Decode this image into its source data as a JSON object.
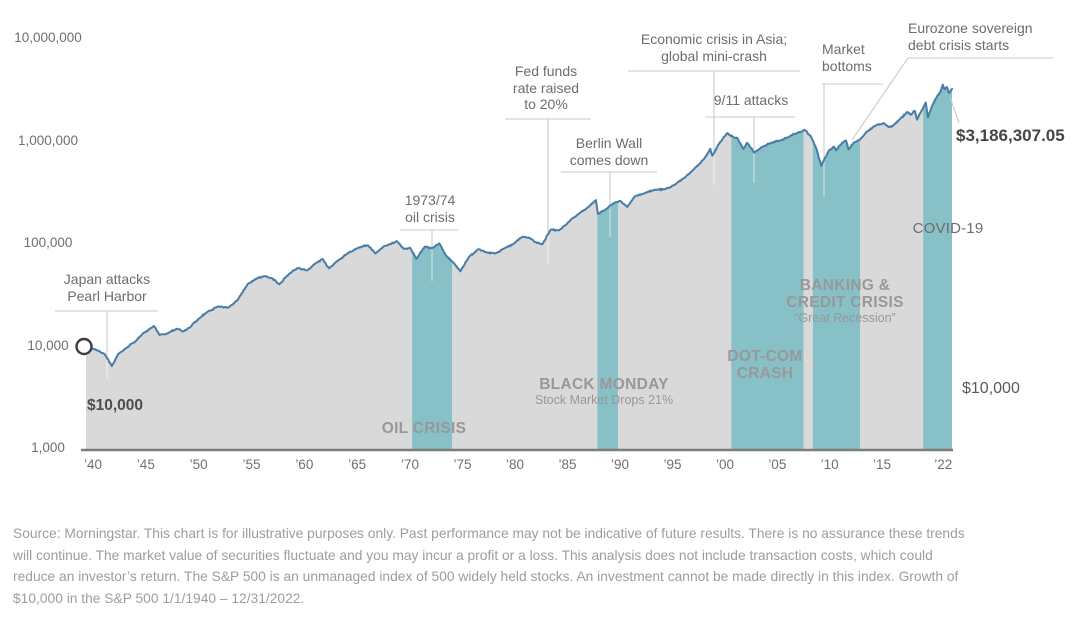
{
  "chart_data": {
    "type": "area",
    "title": "",
    "description": "Growth of $10,000 in the S&P 500 1/1/1940 - 12/31/2022",
    "y_axis": {
      "scale": "log",
      "range": [
        1000,
        10000000
      ],
      "ticks": [
        {
          "label": "10,000,000",
          "value": 10000000
        },
        {
          "label": "1,000,000",
          "value": 1000000
        },
        {
          "label": "100,000",
          "value": 100000
        },
        {
          "label": "10,000",
          "value": 10000
        },
        {
          "label": "1,000",
          "value": 1000
        }
      ]
    },
    "x_axis": {
      "range_years": [
        1940,
        2023
      ],
      "ticks": [
        {
          "label": "’40",
          "year": 1940
        },
        {
          "label": "’45",
          "year": 1945
        },
        {
          "label": "’50",
          "year": 1950
        },
        {
          "label": "’55",
          "year": 1955
        },
        {
          "label": "’60",
          "year": 1960
        },
        {
          "label": "’65",
          "year": 1965
        },
        {
          "label": "’70",
          "year": 1970
        },
        {
          "label": "’75",
          "year": 1975
        },
        {
          "label": "’80",
          "year": 1980
        },
        {
          "label": "’85",
          "year": 1985
        },
        {
          "label": "’90",
          "year": 1990
        },
        {
          "label": "’95",
          "year": 1995
        },
        {
          "label": "’00",
          "year": 2000
        },
        {
          "label": "’05",
          "year": 2005
        },
        {
          "label": "’10",
          "year": 2010
        },
        {
          "label": "’15",
          "year": 2015
        },
        {
          "label": "’22",
          "year": 2022
        }
      ]
    },
    "series": {
      "name": "Growth of $10,000 in the S&P 500",
      "start_value": 10000,
      "end_value": 3186307.05,
      "points": [
        [
          1940.0,
          10000
        ],
        [
          1940.6,
          9300
        ],
        [
          1941.1,
          8900
        ],
        [
          1941.7,
          8300
        ],
        [
          1942.4,
          6300
        ],
        [
          1943.0,
          8300
        ],
        [
          1943.8,
          9600
        ],
        [
          1944.5,
          10800
        ],
        [
          1945.3,
          13200
        ],
        [
          1946.3,
          15500
        ],
        [
          1946.8,
          12700
        ],
        [
          1947.5,
          13000
        ],
        [
          1948.4,
          14600
        ],
        [
          1949.0,
          13700
        ],
        [
          1949.6,
          15000
        ],
        [
          1950.5,
          18500
        ],
        [
          1951.3,
          21500
        ],
        [
          1952.2,
          24000
        ],
        [
          1953.2,
          23500
        ],
        [
          1954.0,
          27500
        ],
        [
          1955.0,
          40000
        ],
        [
          1955.8,
          45000
        ],
        [
          1956.5,
          47500
        ],
        [
          1957.2,
          45500
        ],
        [
          1957.9,
          39500
        ],
        [
          1958.8,
          50000
        ],
        [
          1959.6,
          57000
        ],
        [
          1960.5,
          54000
        ],
        [
          1961.3,
          64000
        ],
        [
          1961.9,
          70000
        ],
        [
          1962.5,
          56500
        ],
        [
          1963.3,
          67000
        ],
        [
          1964.2,
          79000
        ],
        [
          1965.2,
          90000
        ],
        [
          1966.1,
          95000
        ],
        [
          1966.8,
          79000
        ],
        [
          1967.6,
          93000
        ],
        [
          1968.8,
          104000
        ],
        [
          1969.4,
          88000
        ],
        [
          1970.0,
          90000
        ],
        [
          1970.6,
          70000
        ],
        [
          1971.4,
          92000
        ],
        [
          1972.1,
          89000
        ],
        [
          1972.8,
          99000
        ],
        [
          1973.4,
          76000
        ],
        [
          1974.1,
          65000
        ],
        [
          1974.8,
          53000
        ],
        [
          1975.6,
          73000
        ],
        [
          1976.5,
          87000
        ],
        [
          1977.3,
          81000
        ],
        [
          1978.1,
          79000
        ],
        [
          1979.0,
          89000
        ],
        [
          1979.8,
          97000
        ],
        [
          1980.7,
          115000
        ],
        [
          1981.4,
          112000
        ],
        [
          1982.1,
          100000
        ],
        [
          1982.6,
          97000
        ],
        [
          1983.4,
          135000
        ],
        [
          1984.2,
          133000
        ],
        [
          1985.1,
          160000
        ],
        [
          1986.0,
          190000
        ],
        [
          1987.0,
          225000
        ],
        [
          1987.7,
          262000
        ],
        [
          1987.9,
          192000
        ],
        [
          1988.5,
          208000
        ],
        [
          1989.4,
          245000
        ],
        [
          1990.0,
          258000
        ],
        [
          1990.7,
          225000
        ],
        [
          1991.4,
          285000
        ],
        [
          1992.3,
          305000
        ],
        [
          1993.3,
          330000
        ],
        [
          1994.3,
          335000
        ],
        [
          1995.2,
          370000
        ],
        [
          1996.1,
          430000
        ],
        [
          1997.0,
          520000
        ],
        [
          1997.7,
          610000
        ],
        [
          1998.0,
          660000
        ],
        [
          1998.6,
          830000
        ],
        [
          1998.8,
          710000
        ],
        [
          1999.4,
          920000
        ],
        [
          2000.2,
          1180000
        ],
        [
          2000.8,
          1080000
        ],
        [
          2001.2,
          1050000
        ],
        [
          2001.75,
          830000
        ],
        [
          2002.1,
          950000
        ],
        [
          2002.8,
          760000
        ],
        [
          2003.5,
          860000
        ],
        [
          2004.4,
          950000
        ],
        [
          2005.3,
          1000000
        ],
        [
          2006.2,
          1100000
        ],
        [
          2007.0,
          1200000
        ],
        [
          2007.6,
          1270000
        ],
        [
          2008.2,
          1100000
        ],
        [
          2008.75,
          820000
        ],
        [
          2009.2,
          565000
        ],
        [
          2009.9,
          790000
        ],
        [
          2010.4,
          870000
        ],
        [
          2010.6,
          800000
        ],
        [
          2011.2,
          950000
        ],
        [
          2011.55,
          1000000
        ],
        [
          2011.8,
          820000
        ],
        [
          2012.3,
          950000
        ],
        [
          2012.9,
          1020000
        ],
        [
          2013.6,
          1230000
        ],
        [
          2014.4,
          1400000
        ],
        [
          2015.2,
          1480000
        ],
        [
          2015.75,
          1350000
        ],
        [
          2016.2,
          1380000
        ],
        [
          2017.0,
          1600000
        ],
        [
          2017.9,
          1900000
        ],
        [
          2018.3,
          1780000
        ],
        [
          2018.75,
          1950000
        ],
        [
          2019.0,
          1600000
        ],
        [
          2019.6,
          2000000
        ],
        [
          2020.0,
          2350000
        ],
        [
          2020.25,
          1680000
        ],
        [
          2020.8,
          2250000
        ],
        [
          2021.3,
          2700000
        ],
        [
          2021.7,
          3000000
        ],
        [
          2021.95,
          3500000
        ],
        [
          2022.15,
          3150000
        ],
        [
          2022.4,
          3320000
        ],
        [
          2022.65,
          2900000
        ],
        [
          2022.85,
          3080000
        ],
        [
          2023.0,
          3186307.05
        ]
      ]
    },
    "crisis_bands": [
      {
        "id": "oil",
        "label": "OIL CRISIS",
        "sublabel": "",
        "start": 1970.2,
        "end": 1974.0
      },
      {
        "id": "black_monday",
        "label": "BLACK MONDAY",
        "sublabel": "Stock Market Drops 21%",
        "start": 1987.85,
        "end": 1989.8
      },
      {
        "id": "dotcom",
        "label": "DOT-COM CRASH",
        "sublabel": "",
        "start": 2000.6,
        "end": 2007.5
      },
      {
        "id": "banking",
        "label": "BANKING & CREDIT CRISIS",
        "sublabel": "“Great Recession”",
        "start": 2008.4,
        "end": 2012.9
      },
      {
        "id": "covid",
        "label": "COVID-19",
        "sublabel": "",
        "start": 2019.7,
        "end": 2023.0
      }
    ],
    "legend": {
      "shown": false
    },
    "grid": false
  },
  "annotations": [
    {
      "id": "pearl",
      "lines": [
        "Japan attacks",
        "Pearl Harbor"
      ]
    },
    {
      "id": "oilnote",
      "lines": [
        "1973/74",
        "oil crisis"
      ]
    },
    {
      "id": "fed",
      "lines": [
        "Fed funds",
        "rate raised",
        "to 20%"
      ]
    },
    {
      "id": "berlin",
      "lines": [
        "Berlin Wall",
        "comes down"
      ]
    },
    {
      "id": "asia",
      "lines": [
        "Economic crisis in Asia;",
        "global mini-crash"
      ]
    },
    {
      "id": "nine11",
      "lines": [
        "9/11 attacks"
      ]
    },
    {
      "id": "bottoms",
      "lines": [
        "Market",
        "bottoms"
      ]
    },
    {
      "id": "euro",
      "lines": [
        "Eurozone sovereign",
        "debt crisis starts"
      ]
    }
  ],
  "value_labels": {
    "start_label": "$10,000",
    "end_label": "$3,186,307.05",
    "right_label": "$10,000"
  },
  "colors": {
    "line": "#477ca8",
    "area": "#d9d9d9",
    "band": "#87c0c7",
    "baseline": "#7d7d7d",
    "pointer": "#c9c9c9",
    "pointer_on_fill": "rgba(255,255,255,0.6)",
    "marker_stroke": "#3d3d3d"
  },
  "source": {
    "lines": [
      "Source: Morningstar. This chart is for illustrative purposes only. Past performance may not be indicative of future results. There is no assurance these trends",
      "will continue. The market value of securities fluctuate and you may incur a profit or a loss. This analysis does not include transaction costs, which could",
      "reduce an investor’s return. The S&P 500 is an unmanaged index of 500 widely held stocks. An investment cannot be made directly in this index. Growth of",
      "$10,000 in the S&P 500 1/1/1940 – 12/31/2022."
    ]
  }
}
